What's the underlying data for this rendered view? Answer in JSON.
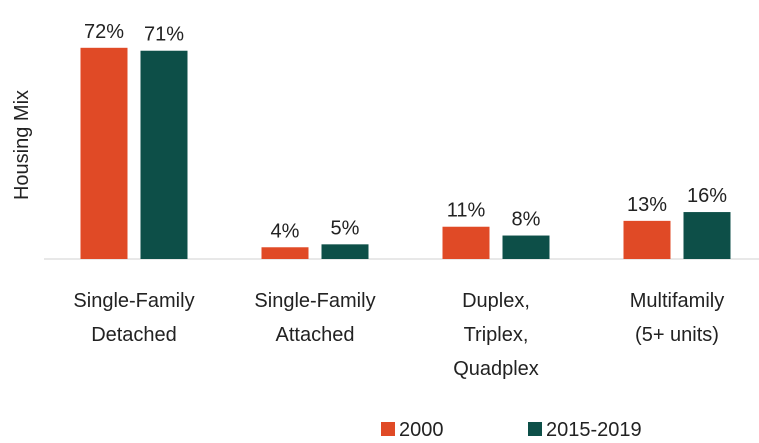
{
  "chart_data": {
    "type": "bar",
    "y_label": "Housing Mix",
    "categories": [
      "Single-Family\nDetached",
      "Single-Family\nAttached",
      "Duplex,\nTriplex,\nQuadplex",
      "Multifamily\n(5+ units)"
    ],
    "series": [
      {
        "name": "2000",
        "color": "#e04a26",
        "values": [
          72,
          4,
          11,
          13
        ],
        "value_labels": [
          "72%",
          "4%",
          "11%",
          "13%"
        ]
      },
      {
        "name": "2015-2019",
        "color": "#0d4f48",
        "values": [
          71,
          5,
          8,
          16
        ],
        "value_labels": [
          "71%",
          "5%",
          "8%",
          "16%"
        ]
      }
    ],
    "ylim": [
      0,
      75
    ],
    "legend": "bottom"
  }
}
